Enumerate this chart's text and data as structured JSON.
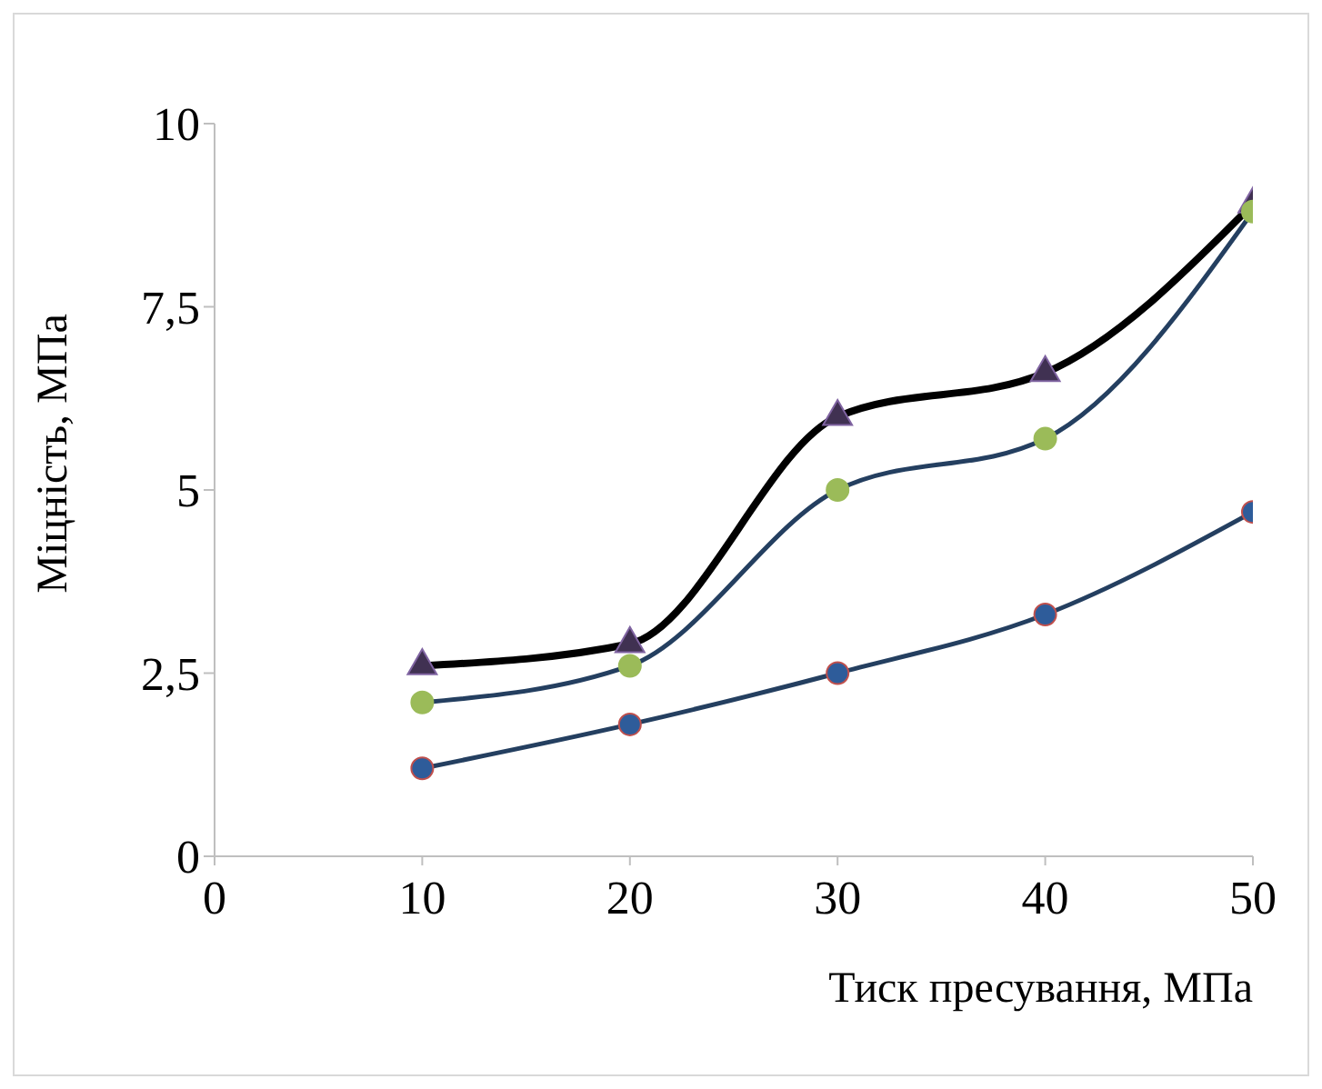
{
  "chart_data": {
    "type": "line",
    "xlabel": "Тиск пресування, МПа",
    "ylabel": "Міцність, МПа",
    "x": [
      10,
      20,
      30,
      40,
      50
    ],
    "series": [
      {
        "color": "#000000",
        "marker": "triangle",
        "colors": [
          "#403152",
          "#403152",
          "#403152",
          "#403152",
          "#403152"
        ],
        "values": [
          2.6,
          2.9,
          6.0,
          6.6,
          8.9
        ]
      },
      {
        "color": "#243f60",
        "marker": "circle",
        "colors": [
          "#9bbb59",
          "#9bbb59",
          "#9bbb59",
          "#9bbb59",
          "#9bbb59"
        ],
        "values": [
          2.1,
          2.6,
          5.0,
          5.7,
          8.8
        ]
      },
      {
        "color": "#243f60",
        "marker": "circle",
        "colors": [
          "#2e5c9a",
          "#2e5c9a",
          "#2e5c9a",
          "#2e5c9a",
          "#2e5c9a"
        ],
        "values": [
          1.2,
          1.8,
          2.5,
          3.3,
          4.7
        ]
      }
    ],
    "xlim": [
      0,
      50
    ],
    "xticks": [
      0,
      10,
      20,
      30,
      40,
      50
    ],
    "ylim": [
      0,
      10
    ],
    "yticks": [
      0,
      {
        "value": 2.5,
        "label": "2,5"
      },
      5,
      {
        "value": 7.5,
        "label": "7,5"
      },
      10
    ],
    "grid": false
  }
}
